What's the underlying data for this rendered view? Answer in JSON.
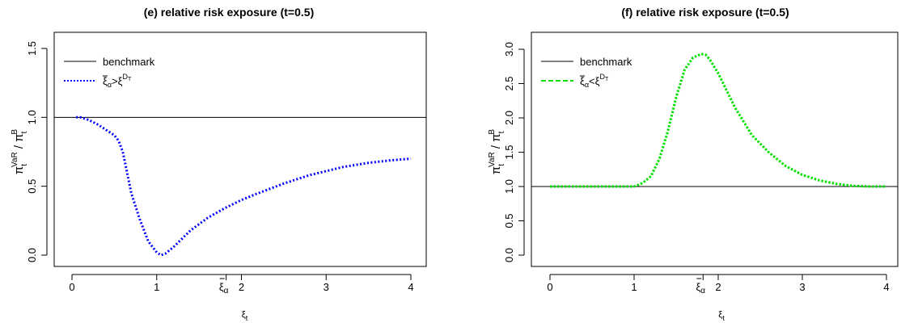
{
  "chart_data": [
    {
      "type": "line",
      "title": "(e) relative risk exposure (t=0.5)",
      "xlabel": "ξt",
      "ylabel": "πtVaR / πtB",
      "xlim": [
        0,
        4
      ],
      "ylim": [
        0,
        1.5
      ],
      "xticks": [
        "0",
        "1",
        "2",
        "3",
        "4"
      ],
      "yticks": [
        "0.0",
        "0.5",
        "1.0",
        "1.5"
      ],
      "xi_bar_tick": {
        "x": 1.82,
        "label": "ξα"
      },
      "grid": false,
      "legend_position": "top-left",
      "legend": [
        {
          "label": "benchmark",
          "color": "#000000",
          "style": "solid"
        },
        {
          "label": "ξα>ξDT",
          "color": "#0000ff",
          "style": "dotted"
        }
      ],
      "series": [
        {
          "name": "benchmark",
          "color": "#000000",
          "style": "solid",
          "x": [
            -0.2,
            4.2
          ],
          "y": [
            1.0,
            1.0
          ]
        },
        {
          "name": "ξα>ξDT",
          "color": "#0000ff",
          "style": "dotted",
          "x": [
            0.05,
            0.1,
            0.2,
            0.3,
            0.4,
            0.5,
            0.55,
            0.6,
            0.65,
            0.7,
            0.8,
            0.9,
            1.0,
            1.05,
            1.1,
            1.2,
            1.3,
            1.4,
            1.6,
            1.8,
            2.0,
            2.2,
            2.5,
            2.8,
            3.0,
            3.2,
            3.5,
            3.8,
            4.0
          ],
          "y": [
            1.0,
            1.0,
            0.98,
            0.95,
            0.91,
            0.87,
            0.83,
            0.75,
            0.6,
            0.45,
            0.26,
            0.1,
            0.02,
            0.0,
            0.01,
            0.06,
            0.12,
            0.18,
            0.27,
            0.34,
            0.4,
            0.45,
            0.52,
            0.58,
            0.61,
            0.64,
            0.67,
            0.69,
            0.7
          ]
        }
      ]
    },
    {
      "type": "line",
      "title": "(f) relative risk exposure (t=0.5)",
      "xlabel": "ξt",
      "ylabel": "πtVaR / πtB",
      "xlim": [
        0,
        4
      ],
      "ylim": [
        0,
        3
      ],
      "xticks": [
        "0",
        "1",
        "2",
        "3",
        "4"
      ],
      "yticks": [
        "0.0",
        "0.5",
        "1.0",
        "1.5",
        "2.0",
        "2.5",
        "3.0"
      ],
      "xi_bar_tick": {
        "x": 1.82,
        "label": "ξα"
      },
      "grid": false,
      "legend_position": "top-left",
      "legend": [
        {
          "label": "benchmark",
          "color": "#000000",
          "style": "solid"
        },
        {
          "label": "ξα<ξDT",
          "color": "#00e000",
          "style": "dashed"
        }
      ],
      "series": [
        {
          "name": "benchmark",
          "color": "#000000",
          "style": "solid",
          "x": [
            -0.2,
            4.2
          ],
          "y": [
            1.0,
            1.0
          ]
        },
        {
          "name": "ξα<ξDT",
          "color": "#00e000",
          "style": "dashed",
          "x": [
            0.0,
            0.5,
            1.0,
            1.1,
            1.2,
            1.3,
            1.4,
            1.5,
            1.6,
            1.7,
            1.8,
            1.85,
            1.9,
            2.0,
            2.1,
            2.2,
            2.4,
            2.6,
            2.8,
            3.0,
            3.2,
            3.4,
            3.6,
            3.8,
            4.0
          ],
          "y": [
            1.0,
            1.0,
            1.0,
            1.05,
            1.15,
            1.4,
            1.8,
            2.3,
            2.7,
            2.88,
            2.93,
            2.92,
            2.85,
            2.65,
            2.4,
            2.15,
            1.75,
            1.5,
            1.3,
            1.17,
            1.09,
            1.04,
            1.01,
            1.0,
            1.0
          ]
        }
      ]
    }
  ]
}
